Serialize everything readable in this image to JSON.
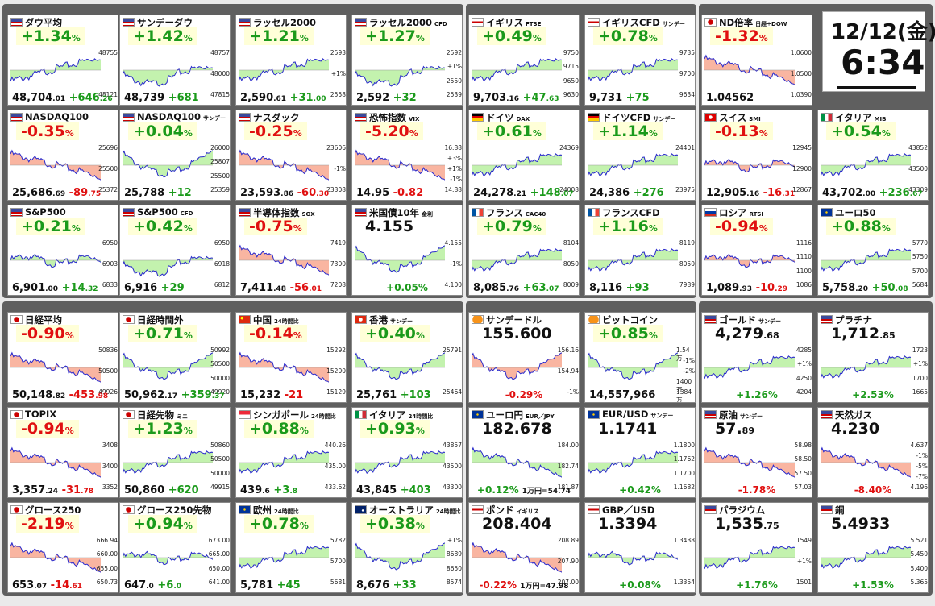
{
  "clock": {
    "date": "12/12(金)",
    "time": "6:34"
  },
  "tiles": [
    {
      "title": "ダウ平均",
      "sub": "",
      "flag": "us",
      "big": "+1.34",
      "unit": "%",
      "dir": "pos",
      "bot": "48,704",
      "botdec": ".01",
      "chg": "+646",
      "chgdec": ".26",
      "y": [
        "48755",
        "48121"
      ],
      "trend": "up"
    },
    {
      "title": "サンデーダウ",
      "sub": "",
      "flag": "us",
      "big": "+1.42",
      "unit": "%",
      "dir": "pos",
      "bot": "48,739",
      "botdec": "",
      "chg": "+681",
      "chgdec": "",
      "y": [
        "48757",
        "48000",
        "47815"
      ],
      "trend": "upv"
    },
    {
      "title": "ラッセル2000",
      "sub": "",
      "flag": "us",
      "big": "+1.21",
      "unit": "%",
      "dir": "pos",
      "bot": "2,590",
      "botdec": ".61",
      "chg": "+31",
      "chgdec": ".00",
      "y": [
        "2593",
        "+1%",
        "2558"
      ],
      "trend": "up"
    },
    {
      "title": "ラッセル2000",
      "sub": "CFD",
      "flag": "us",
      "big": "+1.27",
      "unit": "%",
      "dir": "pos",
      "bot": "2,592",
      "botdec": "",
      "chg": "+32",
      "chgdec": "",
      "y": [
        "2592",
        "+1%",
        "2550",
        "2539"
      ],
      "trend": "upv"
    },
    {
      "title": "イギリス",
      "sub": "FTSE",
      "flag": "uk",
      "big": "+0.49",
      "unit": "%",
      "dir": "pos",
      "bot": "9,703",
      "botdec": ".16",
      "chg": "+47",
      "chgdec": ".63",
      "y": [
        "9750",
        "9715",
        "9650",
        "9630"
      ],
      "trend": "up"
    },
    {
      "title": "イギリスCFD",
      "sub": "サンデー",
      "flag": "uk",
      "big": "+0.78",
      "unit": "%",
      "dir": "pos",
      "bot": "9,731",
      "botdec": "",
      "chg": "+75",
      "chgdec": "",
      "y": [
        "9735",
        "9700",
        "9634"
      ],
      "trend": "up"
    },
    {
      "title": "ND倍率",
      "sub": "日経÷DOW",
      "flag": "jp",
      "big": "-1.32",
      "unit": "%",
      "dir": "neg",
      "bot": "1.04562",
      "botdec": "",
      "chg": "",
      "chgdec": "",
      "y": [
        "1.0600",
        "1.0500",
        "1.0390"
      ],
      "trend": "down"
    },
    {
      "title": "NASDAQ100",
      "sub": "",
      "flag": "us",
      "big": "-0.35",
      "unit": "%",
      "dir": "neg",
      "bot": "25,686",
      "botdec": ".69",
      "chg": "-89",
      "chgdec": ".75",
      "y": [
        "25696",
        "25500",
        "25372"
      ],
      "trend": "down"
    },
    {
      "title": "NASDAQ100",
      "sub": "サンデー",
      "flag": "us",
      "big": "+0.04",
      "unit": "%",
      "dir": "pos",
      "bot": "25,788",
      "botdec": "",
      "chg": "+12",
      "chgdec": "",
      "y": [
        "26000",
        "25807",
        "25500",
        "25359"
      ],
      "trend": "vee"
    },
    {
      "title": "ナスダック",
      "sub": "",
      "flag": "us",
      "big": "-0.25",
      "unit": "%",
      "dir": "neg",
      "bot": "23,593",
      "botdec": ".86",
      "chg": "-60",
      "chgdec": ".30",
      "y": [
        "23606",
        "-1%",
        "23308"
      ],
      "trend": "down"
    },
    {
      "title": "恐怖指数",
      "sub": "VIX",
      "flag": "us",
      "big": "-5.20",
      "unit": "%",
      "dir": "neg",
      "bot": "14.95",
      "botdec": "",
      "chg": "-0.82",
      "chgdec": "",
      "y": [
        "16.88",
        "+3%",
        "+1%",
        "-1%",
        "14.88"
      ],
      "trend": "down"
    },
    {
      "title": "ドイツ",
      "sub": "DAX",
      "flag": "de",
      "big": "+0.61",
      "unit": "%",
      "dir": "pos",
      "bot": "24,278",
      "botdec": ".21",
      "chg": "+148",
      "chgdec": ".07",
      "y": [
        "24369",
        "24008"
      ],
      "trend": "up"
    },
    {
      "title": "ドイツCFD",
      "sub": "サンデー",
      "flag": "de",
      "big": "+1.14",
      "unit": "%",
      "dir": "pos",
      "bot": "24,386",
      "botdec": "",
      "chg": "+276",
      "chgdec": "",
      "y": [
        "24401",
        "23975"
      ],
      "trend": "up"
    },
    {
      "title": "スイス",
      "sub": "SMI",
      "flag": "ch",
      "big": "-0.13",
      "unit": "%",
      "dir": "neg",
      "bot": "12,905",
      "botdec": ".16",
      "chg": "-16",
      "chgdec": ".31",
      "y": [
        "12945",
        "12900",
        "12867"
      ],
      "trend": "flat"
    },
    {
      "title": "イタリア",
      "sub": "MIB",
      "flag": "it",
      "big": "+0.54",
      "unit": "%",
      "dir": "pos",
      "bot": "43,702",
      "botdec": ".00",
      "chg": "+236",
      "chgdec": ".67",
      "y": [
        "43852",
        "43500",
        "43309"
      ],
      "trend": "up"
    },
    {
      "title": "S&P500",
      "sub": "",
      "flag": "us",
      "big": "+0.21",
      "unit": "%",
      "dir": "pos",
      "bot": "6,901",
      "botdec": ".00",
      "chg": "+14",
      "chgdec": ".32",
      "y": [
        "6950",
        "6903",
        "6833"
      ],
      "trend": "flat"
    },
    {
      "title": "S&P500",
      "sub": "CFD",
      "flag": "us",
      "big": "+0.42",
      "unit": "%",
      "dir": "pos",
      "bot": "6,916",
      "botdec": "",
      "chg": "+29",
      "chgdec": "",
      "y": [
        "6950",
        "6918",
        "6812"
      ],
      "trend": "upv"
    },
    {
      "title": "半導体指数",
      "sub": "SOX",
      "flag": "us",
      "big": "-0.75",
      "unit": "%",
      "dir": "neg",
      "bot": "7,411",
      "botdec": ".48",
      "chg": "-56",
      "chgdec": ".01",
      "y": [
        "7419",
        "7300",
        "7208"
      ],
      "trend": "down"
    },
    {
      "title": "米国債10年",
      "sub": "金利",
      "flag": "us",
      "big": "4.155",
      "unit": "",
      "dir": "neu",
      "bot": "",
      "botdec": "",
      "chg": "+0.05%",
      "chgdec": "",
      "y": [
        "4.155",
        "-1%",
        "4.100"
      ],
      "trend": "vee"
    },
    {
      "title": "フランス",
      "sub": "CAC40",
      "flag": "fr",
      "big": "+0.79",
      "unit": "%",
      "dir": "pos",
      "bot": "8,085",
      "botdec": ".76",
      "chg": "+63",
      "chgdec": ".07",
      "y": [
        "8104",
        "8050",
        "8009"
      ],
      "trend": "up"
    },
    {
      "title": "フランスCFD",
      "sub": "",
      "flag": "fr",
      "big": "+1.16",
      "unit": "%",
      "dir": "pos",
      "bot": "8,116",
      "botdec": "",
      "chg": "+93",
      "chgdec": "",
      "y": [
        "8119",
        "8050",
        "7989"
      ],
      "trend": "up"
    },
    {
      "title": "ロシア",
      "sub": "RTSI",
      "flag": "ru",
      "big": "-0.94",
      "unit": "%",
      "dir": "neg",
      "bot": "1,089",
      "botdec": ".93",
      "chg": "-10",
      "chgdec": ".29",
      "y": [
        "1116",
        "1110",
        "1100",
        "1086"
      ],
      "trend": "flat"
    },
    {
      "title": "ユーロ50",
      "sub": "",
      "flag": "eu",
      "big": "+0.88",
      "unit": "%",
      "dir": "pos",
      "bot": "5,758",
      "botdec": ".20",
      "chg": "+50",
      "chgdec": ".08",
      "y": [
        "5770",
        "5750",
        "5700",
        "5684"
      ],
      "trend": "up"
    },
    {
      "title": "日経平均",
      "sub": "",
      "flag": "jp",
      "big": "-0.90",
      "unit": "%",
      "dir": "neg",
      "bot": "50,148",
      "botdec": ".82",
      "chg": "-453",
      "chgdec": ".98",
      "y": [
        "50836",
        "50500",
        "49926"
      ],
      "trend": "down"
    },
    {
      "title": "日経時間外",
      "sub": "",
      "flag": "jp",
      "big": "+0.71",
      "unit": "%",
      "dir": "pos",
      "bot": "50,962",
      "botdec": ".17",
      "chg": "+359",
      "chgdec": ".37",
      "y": [
        "50992",
        "50500",
        "50000",
        "49920"
      ],
      "trend": "vee"
    },
    {
      "title": "中国",
      "sub": "24時間比",
      "flag": "cn",
      "big": "-0.14",
      "unit": "%",
      "dir": "neg",
      "bot": "15,232",
      "botdec": "",
      "chg": "-21",
      "chgdec": "",
      "y": [
        "15292",
        "15200",
        "15129"
      ],
      "trend": "down"
    },
    {
      "title": "香港",
      "sub": "サンデー",
      "flag": "hk",
      "big": "+0.40",
      "unit": "%",
      "dir": "pos",
      "bot": "25,761",
      "botdec": "",
      "chg": "+103",
      "chgdec": "",
      "y": [
        "25791",
        "25464"
      ],
      "trend": "vee"
    },
    {
      "title": "サンデードル",
      "sub": "",
      "flag": "btc",
      "big": "155.600",
      "unit": "",
      "dir": "neu",
      "bot": "",
      "botdec": "",
      "chg": "-0.29%",
      "chgdec": "",
      "y": [
        "156.16",
        "154.94",
        "-1%"
      ],
      "trend": "vee"
    },
    {
      "title": "ビットコイン",
      "sub": "",
      "flag": "btc",
      "big": "+0.85",
      "unit": "%",
      "dir": "pos",
      "bot": "14,557,966",
      "botdec": "",
      "chg": "",
      "chgdec": "",
      "y": [
        "1.54万",
        "-1%",
        "-2%",
        "1400万",
        "1384万"
      ],
      "trend": "vee"
    },
    {
      "title": "ゴールド",
      "sub": "サンデー",
      "flag": "us",
      "big": "4,279",
      "unit": ".68",
      "dir": "neu",
      "bot": "",
      "botdec": "",
      "chg": "+1.26%",
      "chgdec": "",
      "y": [
        "4285",
        "+1%",
        "4250",
        "4204"
      ],
      "trend": "up"
    },
    {
      "title": "プラチナ",
      "sub": "",
      "flag": "us",
      "big": "1,712",
      "unit": ".85",
      "dir": "neu",
      "bot": "",
      "botdec": "",
      "chg": "+2.53%",
      "chgdec": "",
      "y": [
        "1723",
        "+1%",
        "1700",
        "1665"
      ],
      "trend": "up"
    },
    {
      "title": "TOPIX",
      "sub": "",
      "flag": "jp",
      "big": "-0.94",
      "unit": "%",
      "dir": "neg",
      "bot": "3,357",
      "botdec": ".24",
      "chg": "-31",
      "chgdec": ".78",
      "y": [
        "3408",
        "3400",
        "3352"
      ],
      "trend": "down"
    },
    {
      "title": "日経先物",
      "sub": "ミニ",
      "flag": "jp",
      "big": "+1.23",
      "unit": "%",
      "dir": "pos",
      "bot": "50,860",
      "botdec": "",
      "chg": "+620",
      "chgdec": "",
      "y": [
        "50860",
        "50500",
        "50000",
        "49915"
      ],
      "trend": "up"
    },
    {
      "title": "シンガポール",
      "sub": "24時間比",
      "flag": "sg",
      "big": "+0.88",
      "unit": "%",
      "dir": "pos",
      "bot": "439",
      "botdec": ".6",
      "chg": "+3",
      "chgdec": ".8",
      "y": [
        "440.26",
        "435.00",
        "433.62"
      ],
      "trend": "up"
    },
    {
      "title": "イタリア",
      "sub": "24時間比",
      "flag": "it",
      "big": "+0.93",
      "unit": "%",
      "dir": "pos",
      "bot": "43,845",
      "botdec": "",
      "chg": "+403",
      "chgdec": "",
      "y": [
        "43857",
        "43500",
        "43300"
      ],
      "trend": "up"
    },
    {
      "title": "ユーロ円",
      "sub": "EUR／JPY",
      "flag": "eu",
      "big": "182.678",
      "unit": "",
      "dir": "neu",
      "bot": "",
      "botdec": "",
      "chg": "+0.12%",
      "chgdec": "",
      "note": "1万円=54.74",
      "y": [
        "184.00",
        "182.74",
        "181.87"
      ],
      "trend": "down"
    },
    {
      "title": "EUR/USD",
      "sub": "サンデー",
      "flag": "eu",
      "big": "1.1741",
      "unit": "",
      "dir": "neu",
      "bot": "",
      "botdec": "",
      "chg": "+0.42%",
      "chgdec": "",
      "y": [
        "1.1800",
        "1.1762",
        "1.1700",
        "1.1682"
      ],
      "trend": "up"
    },
    {
      "title": "原油",
      "sub": "サンデー",
      "flag": "us",
      "big": "57.",
      "unit": "89",
      "dir": "neu",
      "bot": "",
      "botdec": "",
      "chg": "-1.78%",
      "chgdec": "",
      "y": [
        "58.98",
        "58.50",
        "57.50",
        "57.03"
      ],
      "trend": "down"
    },
    {
      "title": "天然ガス",
      "sub": "",
      "flag": "us",
      "big": "4.230",
      "unit": "",
      "dir": "neu",
      "bot": "",
      "botdec": "",
      "chg": "-8.40%",
      "chgdec": "",
      "y": [
        "4.637",
        "-1%",
        "-5%",
        "-7%",
        "4.196"
      ],
      "trend": "down"
    },
    {
      "title": "グロース250",
      "sub": "",
      "flag": "jp",
      "big": "-2.19",
      "unit": "%",
      "dir": "neg",
      "bot": "653",
      "botdec": ".07",
      "chg": "-14",
      "chgdec": ".61",
      "y": [
        "666.94",
        "660.00",
        "655.00",
        "650.73"
      ],
      "trend": "down"
    },
    {
      "title": "グロース250先物",
      "sub": "",
      "flag": "jp",
      "big": "+0.94",
      "unit": "%",
      "dir": "pos",
      "bot": "647",
      "botdec": ".0",
      "chg": "+6",
      "chgdec": ".0",
      "y": [
        "673.00",
        "665.00",
        "650.00",
        "641.00"
      ],
      "trend": "flat"
    },
    {
      "title": "欧州",
      "sub": "24時間比",
      "flag": "eu",
      "big": "+0.78",
      "unit": "%",
      "dir": "pos",
      "bot": "5,781",
      "botdec": "",
      "chg": "+45",
      "chgdec": "",
      "y": [
        "5782",
        "5700",
        "5681"
      ],
      "trend": "up"
    },
    {
      "title": "オーストラリア",
      "sub": "24時間比",
      "flag": "au",
      "big": "+0.38",
      "unit": "%",
      "dir": "pos",
      "bot": "8,676",
      "botdec": "",
      "chg": "+33",
      "chgdec": "",
      "y": [
        "+1%",
        "8689",
        "8650",
        "8574"
      ],
      "trend": "vee"
    },
    {
      "title": "ポンド",
      "sub": "イギリス",
      "flag": "uk",
      "big": "208.404",
      "unit": "",
      "dir": "neu",
      "bot": "",
      "botdec": "",
      "chg": "-0.22%",
      "chgdec": "",
      "note": "1万円=47.98",
      "y": [
        "208.89",
        "207.90",
        "207.00"
      ],
      "trend": "down"
    },
    {
      "title": "GBP／USD",
      "sub": "",
      "flag": "uk",
      "big": "1.3394",
      "unit": "",
      "dir": "neu",
      "bot": "",
      "botdec": "",
      "chg": "+0.08%",
      "chgdec": "",
      "y": [
        "1.3438",
        "1.3354"
      ],
      "trend": "flat"
    },
    {
      "title": "パラジウム",
      "sub": "",
      "flag": "us",
      "big": "1,535",
      "unit": ".75",
      "dir": "neu",
      "bot": "",
      "botdec": "",
      "chg": "+1.76%",
      "chgdec": "",
      "y": [
        "1549",
        "+1%",
        "1501"
      ],
      "trend": "up"
    },
    {
      "title": "銅",
      "sub": "",
      "flag": "us",
      "big": "5.4933",
      "unit": "",
      "dir": "neu",
      "bot": "",
      "botdec": "",
      "chg": "+1.53%",
      "chgdec": "",
      "y": [
        "5.521",
        "5.450",
        "5.400",
        "5.365"
      ],
      "trend": "up"
    }
  ],
  "colors": {
    "up": "#1b9a1b",
    "down": "#e01010",
    "fill_up": "#b8f0a0",
    "fill_down": "#f8a890",
    "line": "#2828cc"
  }
}
